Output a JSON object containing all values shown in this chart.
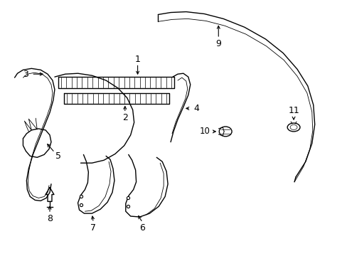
{
  "background_color": "#ffffff",
  "line_color": "#000000",
  "lw": 1.0,
  "fig_width": 4.89,
  "fig_height": 3.6,
  "dpi": 100
}
